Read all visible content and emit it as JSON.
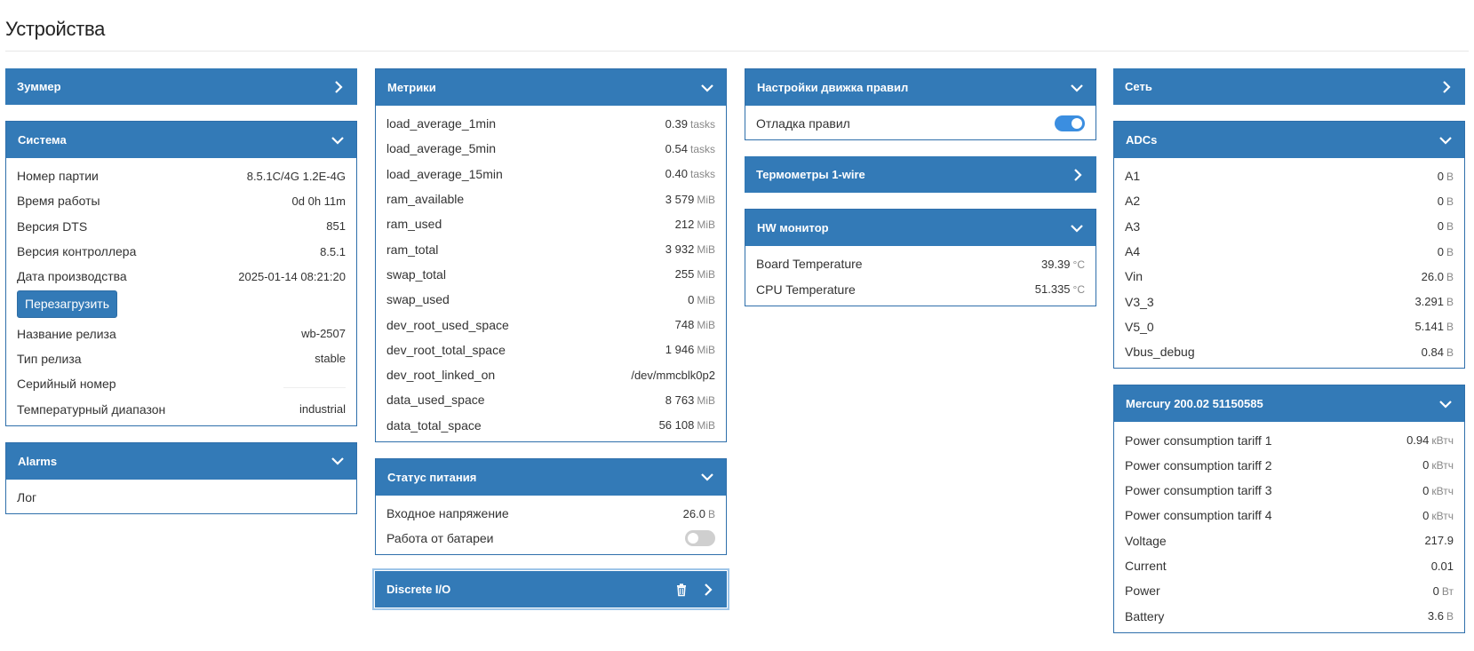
{
  "page": {
    "title": "Устройства"
  },
  "colors": {
    "header": "#337ab7",
    "border": "#2f6fab",
    "toggle_on": "#3b8ee0"
  },
  "panels": {
    "buzzer": {
      "title": "Зуммер"
    },
    "system": {
      "title": "Система",
      "rows": [
        {
          "label": "Номер партии",
          "value": "8.5.1C/4G 1.2E-4G"
        },
        {
          "label": "Время работы",
          "value": "0d 0h 11m"
        },
        {
          "label": "Версия DTS",
          "value": "851"
        },
        {
          "label": "Версия контроллера",
          "value": "8.5.1"
        },
        {
          "label": "Дата производства",
          "value": "2025-01-14 08:21:20"
        }
      ],
      "reboot_label": "Перезагрузить",
      "rows2": [
        {
          "label": "Название релиза",
          "value": "wb-2507"
        },
        {
          "label": "Тип релиза",
          "value": "stable"
        },
        {
          "label": "Серийный номер",
          "value": ""
        },
        {
          "label": "Температурный диапазон",
          "value": "industrial"
        }
      ]
    },
    "alarms": {
      "title": "Alarms",
      "rows": [
        {
          "label": "Лог"
        }
      ]
    },
    "metrics": {
      "title": "Метрики",
      "rows": [
        {
          "label": "load_average_1min",
          "value": "0.39",
          "unit": "tasks"
        },
        {
          "label": "load_average_5min",
          "value": "0.54",
          "unit": "tasks"
        },
        {
          "label": "load_average_15min",
          "value": "0.40",
          "unit": "tasks"
        },
        {
          "label": "ram_available",
          "value": "3 579",
          "unit": "MiB"
        },
        {
          "label": "ram_used",
          "value": "212",
          "unit": "MiB"
        },
        {
          "label": "ram_total",
          "value": "3 932",
          "unit": "MiB"
        },
        {
          "label": "swap_total",
          "value": "255",
          "unit": "MiB"
        },
        {
          "label": "swap_used",
          "value": "0",
          "unit": "MiB"
        },
        {
          "label": "dev_root_used_space",
          "value": "748",
          "unit": "MiB"
        },
        {
          "label": "dev_root_total_space",
          "value": "1 946",
          "unit": "MiB"
        },
        {
          "label": "dev_root_linked_on",
          "value": "/dev/mmcblk0p2",
          "unit": ""
        },
        {
          "label": "data_used_space",
          "value": "8 763",
          "unit": "MiB"
        },
        {
          "label": "data_total_space",
          "value": "56 108",
          "unit": "MiB"
        }
      ]
    },
    "power_status": {
      "title": "Статус питания",
      "rows": [
        {
          "label": "Входное напряжение",
          "value": "26.0",
          "unit": "В"
        }
      ],
      "battery_label": "Работа от батареи",
      "battery_on": false
    },
    "discrete_io": {
      "title": "Discrete I/O"
    },
    "rule_engine": {
      "title": "Настройки движка правил",
      "debug_label": "Отладка правил",
      "debug_on": true
    },
    "thermometers": {
      "title": "Термометры 1-wire"
    },
    "hw_monitor": {
      "title": "HW монитор",
      "rows": [
        {
          "label": "Board Temperature",
          "value": "39.39",
          "unit": "°C"
        },
        {
          "label": "CPU Temperature",
          "value": "51.335",
          "unit": "°C"
        }
      ]
    },
    "network": {
      "title": "Сеть"
    },
    "adcs": {
      "title": "ADCs",
      "rows": [
        {
          "label": "A1",
          "value": "0",
          "unit": "В"
        },
        {
          "label": "A2",
          "value": "0",
          "unit": "В"
        },
        {
          "label": "A3",
          "value": "0",
          "unit": "В"
        },
        {
          "label": "A4",
          "value": "0",
          "unit": "В"
        },
        {
          "label": "Vin",
          "value": "26.0",
          "unit": "В"
        },
        {
          "label": "V3_3",
          "value": "3.291",
          "unit": "В"
        },
        {
          "label": "V5_0",
          "value": "5.141",
          "unit": "В"
        },
        {
          "label": "Vbus_debug",
          "value": "0.84",
          "unit": "В"
        }
      ]
    },
    "mercury": {
      "title": "Mercury 200.02 51150585",
      "rows": [
        {
          "label": "Power consumption tariff 1",
          "value": "0.94",
          "unit": "кВтч"
        },
        {
          "label": "Power consumption tariff 2",
          "value": "0",
          "unit": "кВтч"
        },
        {
          "label": "Power consumption tariff 3",
          "value": "0",
          "unit": "кВтч"
        },
        {
          "label": "Power consumption tariff 4",
          "value": "0",
          "unit": "кВтч"
        },
        {
          "label": "Voltage",
          "value": "217.9",
          "unit": ""
        },
        {
          "label": "Current",
          "value": "0.01",
          "unit": ""
        },
        {
          "label": "Power",
          "value": "0",
          "unit": "Вт"
        },
        {
          "label": "Battery",
          "value": "3.6",
          "unit": "В"
        }
      ]
    }
  }
}
